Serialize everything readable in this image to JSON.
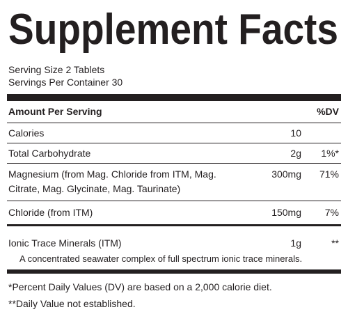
{
  "title": "Supplement Facts",
  "serving": [
    "Serving Size 2 Tablets",
    "Servings Per Container 30"
  ],
  "table": {
    "header": [
      "Amount Per Serving",
      "%DV"
    ],
    "rows": [
      {
        "name": [
          "Calories"
        ],
        "amount": "10"
      },
      {
        "name": [
          "Total Carbohydrate"
        ],
        "amount": "2g",
        "dv": "1%*"
      },
      {
        "name": [
          "Magnesium (from Mag. Chloride from ITM, Mag.",
          "Citrate, Mag. Glycinate, Mag. Taurinate)"
        ],
        "amount": "300mg",
        "dv": "71%"
      },
      {
        "name": [
          "Chloride (from ITM)"
        ],
        "amount": "150mg",
        "dv": "7%"
      },
      {
        "name": [
          "Ionic Trace Minerals (ITM)"
        ],
        "amount": "1g",
        "dv": "**",
        "note": "A concentrated seawater complex of full spectrum ionic trace minerals."
      }
    ]
  },
  "footnotes": [
    "*Percent Daily Values (DV) are based on a 2,000 calorie diet.",
    "**Daily Value not established."
  ]
}
